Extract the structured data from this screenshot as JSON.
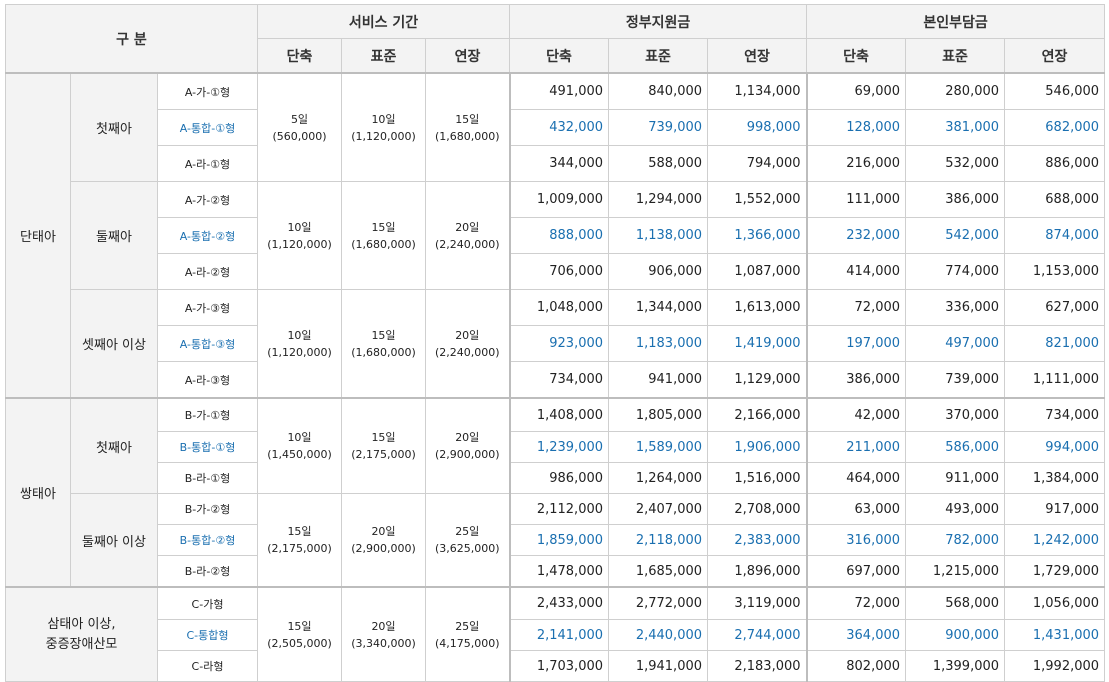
{
  "header": {
    "category": "구 분",
    "groups": [
      "서비스 기간",
      "정부지원금",
      "본인부담금"
    ],
    "sub": [
      "단축",
      "표준",
      "연장"
    ]
  },
  "groups": [
    {
      "name": "단태아",
      "subs": [
        {
          "name": "첫째아",
          "periods": [
            [
              "5일",
              "(560,000)"
            ],
            [
              "10일",
              "(1,120,000)"
            ],
            [
              "15일",
              "(1,680,000)"
            ]
          ],
          "rows": [
            {
              "type": "A-가-①형",
              "hl": false,
              "gov": [
                "491,000",
                "840,000",
                "1,134,000"
              ],
              "self": [
                "69,000",
                "280,000",
                "546,000"
              ]
            },
            {
              "type": "A-통합-①형",
              "hl": true,
              "gov": [
                "432,000",
                "739,000",
                "998,000"
              ],
              "self": [
                "128,000",
                "381,000",
                "682,000"
              ]
            },
            {
              "type": "A-라-①형",
              "hl": false,
              "gov": [
                "344,000",
                "588,000",
                "794,000"
              ],
              "self": [
                "216,000",
                "532,000",
                "886,000"
              ]
            }
          ]
        },
        {
          "name": "둘째아",
          "periods": [
            [
              "10일",
              "(1,120,000)"
            ],
            [
              "15일",
              "(1,680,000)"
            ],
            [
              "20일",
              "(2,240,000)"
            ]
          ],
          "rows": [
            {
              "type": "A-가-②형",
              "hl": false,
              "gov": [
                "1,009,000",
                "1,294,000",
                "1,552,000"
              ],
              "self": [
                "111,000",
                "386,000",
                "688,000"
              ]
            },
            {
              "type": "A-통합-②형",
              "hl": true,
              "gov": [
                "888,000",
                "1,138,000",
                "1,366,000"
              ],
              "self": [
                "232,000",
                "542,000",
                "874,000"
              ]
            },
            {
              "type": "A-라-②형",
              "hl": false,
              "gov": [
                "706,000",
                "906,000",
                "1,087,000"
              ],
              "self": [
                "414,000",
                "774,000",
                "1,153,000"
              ]
            }
          ]
        },
        {
          "name": "셋째아 이상",
          "periods": [
            [
              "10일",
              "(1,120,000)"
            ],
            [
              "15일",
              "(1,680,000)"
            ],
            [
              "20일",
              "(2,240,000)"
            ]
          ],
          "rows": [
            {
              "type": "A-가-③형",
              "hl": false,
              "gov": [
                "1,048,000",
                "1,344,000",
                "1,613,000"
              ],
              "self": [
                "72,000",
                "336,000",
                "627,000"
              ]
            },
            {
              "type": "A-통합-③형",
              "hl": true,
              "gov": [
                "923,000",
                "1,183,000",
                "1,419,000"
              ],
              "self": [
                "197,000",
                "497,000",
                "821,000"
              ]
            },
            {
              "type": "A-라-③형",
              "hl": false,
              "gov": [
                "734,000",
                "941,000",
                "1,129,000"
              ],
              "self": [
                "386,000",
                "739,000",
                "1,111,000"
              ]
            }
          ]
        }
      ]
    },
    {
      "name": "쌍태아",
      "subs": [
        {
          "name": "첫째아",
          "periods": [
            [
              "10일",
              "(1,450,000)"
            ],
            [
              "15일",
              "(2,175,000)"
            ],
            [
              "20일",
              "(2,900,000)"
            ]
          ],
          "rows": [
            {
              "type": "B-가-①형",
              "hl": false,
              "gov": [
                "1,408,000",
                "1,805,000",
                "2,166,000"
              ],
              "self": [
                "42,000",
                "370,000",
                "734,000"
              ]
            },
            {
              "type": "B-통합-①형",
              "hl": true,
              "gov": [
                "1,239,000",
                "1,589,000",
                "1,906,000"
              ],
              "self": [
                "211,000",
                "586,000",
                "994,000"
              ]
            },
            {
              "type": "B-라-①형",
              "hl": false,
              "gov": [
                "986,000",
                "1,264,000",
                "1,516,000"
              ],
              "self": [
                "464,000",
                "911,000",
                "1,384,000"
              ]
            }
          ]
        },
        {
          "name": "둘째아 이상",
          "periods": [
            [
              "15일",
              "(2,175,000)"
            ],
            [
              "20일",
              "(2,900,000)"
            ],
            [
              "25일",
              "(3,625,000)"
            ]
          ],
          "rows": [
            {
              "type": "B-가-②형",
              "hl": false,
              "gov": [
                "2,112,000",
                "2,407,000",
                "2,708,000"
              ],
              "self": [
                "63,000",
                "493,000",
                "917,000"
              ]
            },
            {
              "type": "B-통합-②형",
              "hl": true,
              "gov": [
                "1,859,000",
                "2,118,000",
                "2,383,000"
              ],
              "self": [
                "316,000",
                "782,000",
                "1,242,000"
              ]
            },
            {
              "type": "B-라-②형",
              "hl": false,
              "gov": [
                "1,478,000",
                "1,685,000",
                "1,896,000"
              ],
              "self": [
                "697,000",
                "1,215,000",
                "1,729,000"
              ]
            }
          ]
        }
      ]
    },
    {
      "name": [
        "삼태아 이상,",
        "중증장애산모"
      ],
      "subs": [
        {
          "name": "",
          "periods": [
            [
              "15일",
              "(2,505,000)"
            ],
            [
              "20일",
              "(3,340,000)"
            ],
            [
              "25일",
              "(4,175,000)"
            ]
          ],
          "rows": [
            {
              "type": "C-가형",
              "hl": false,
              "gov": [
                "2,433,000",
                "2,772,000",
                "3,119,000"
              ],
              "self": [
                "72,000",
                "568,000",
                "1,056,000"
              ]
            },
            {
              "type": "C-통합형",
              "hl": true,
              "gov": [
                "2,141,000",
                "2,440,000",
                "2,744,000"
              ],
              "self": [
                "364,000",
                "900,000",
                "1,431,000"
              ]
            },
            {
              "type": "C-라형",
              "hl": false,
              "gov": [
                "1,703,000",
                "1,941,000",
                "2,183,000"
              ],
              "self": [
                "802,000",
                "1,399,000",
                "1,992,000"
              ]
            }
          ]
        }
      ]
    }
  ]
}
